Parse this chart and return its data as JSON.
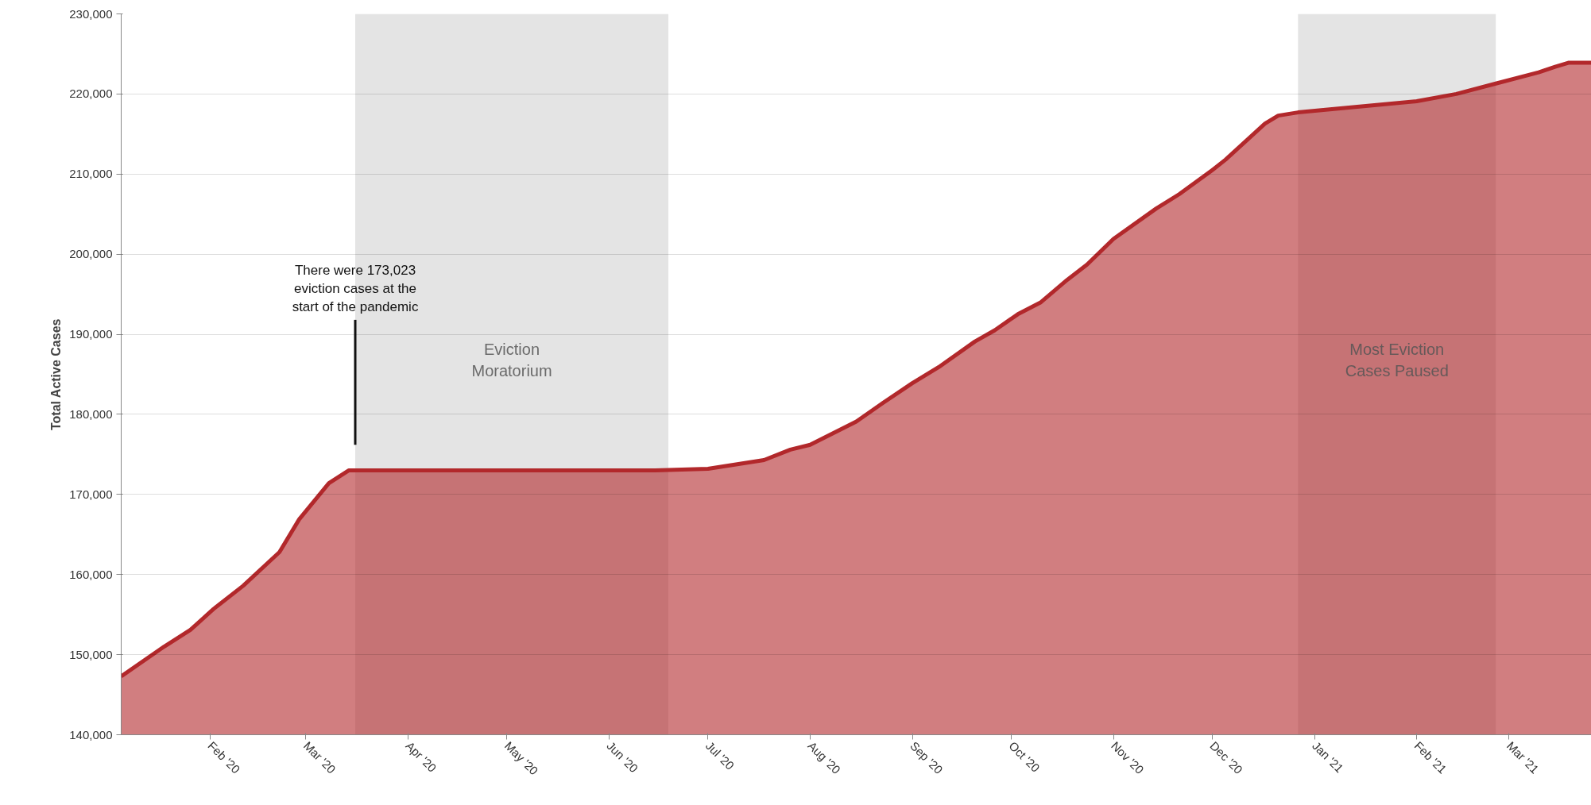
{
  "chart_data": {
    "type": "area",
    "ylabel": "Total Active Cases",
    "x": [
      "2020-01-05",
      "2020-01-18",
      "2020-01-26",
      "2020-02-02",
      "2020-02-11",
      "2020-02-22",
      "2020-02-28",
      "2020-03-08",
      "2020-03-14",
      "2020-03-16",
      "2020-04-15",
      "2020-05-15",
      "2020-06-15",
      "2020-07-01",
      "2020-07-18",
      "2020-07-26",
      "2020-08-01",
      "2020-08-15",
      "2020-08-23",
      "2020-09-01",
      "2020-09-09",
      "2020-09-20",
      "2020-09-26",
      "2020-10-03",
      "2020-10-10",
      "2020-10-18",
      "2020-10-24",
      "2020-11-01",
      "2020-11-14",
      "2020-11-21",
      "2020-12-01",
      "2020-12-05",
      "2020-12-17",
      "2020-12-21",
      "2020-12-27",
      "2021-01-14",
      "2021-02-01",
      "2021-02-13",
      "2021-02-25",
      "2021-03-10",
      "2021-03-15",
      "2021-03-19",
      "2021-03-26"
    ],
    "series": [
      {
        "color": "#b2282b",
        "values": [
          147300,
          151000,
          153100,
          155700,
          158600,
          162800,
          166900,
          171400,
          173000,
          173000,
          173000,
          173000,
          173000,
          173200,
          174300,
          175600,
          176200,
          179100,
          181400,
          183900,
          185900,
          189100,
          190500,
          192500,
          194000,
          196800,
          198700,
          201900,
          205700,
          207500,
          210500,
          211800,
          216300,
          217300,
          217700,
          218400,
          219100,
          220000,
          221300,
          222700,
          223400,
          223900,
          223900
        ]
      },
      {
        "type": "line",
        "color": "#111111",
        "x": [
          "2020-03-16",
          "2020-03-16"
        ],
        "values": [
          176200,
          191800
        ]
      }
    ],
    "xlim": [
      "2020-01-05",
      "2021-03-26"
    ],
    "xticks": [
      {
        "value": "2020-02-01",
        "label": "Feb '20"
      },
      {
        "value": "2020-03-01",
        "label": "Mar '20"
      },
      {
        "value": "2020-04-01",
        "label": "Apr '20"
      },
      {
        "value": "2020-05-01",
        "label": "May '20"
      },
      {
        "value": "2020-06-01",
        "label": "Jun '20"
      },
      {
        "value": "2020-07-01",
        "label": "Jul '20"
      },
      {
        "value": "2020-08-01",
        "label": "Aug '20"
      },
      {
        "value": "2020-09-01",
        "label": "Sep '20"
      },
      {
        "value": "2020-10-01",
        "label": "Oct '20"
      },
      {
        "value": "2020-11-01",
        "label": "Nov '20"
      },
      {
        "value": "2020-12-01",
        "label": "Dec '20"
      },
      {
        "value": "2021-01-01",
        "label": "Jan '21"
      },
      {
        "value": "2021-02-01",
        "label": "Feb '21"
      },
      {
        "value": "2021-03-01",
        "label": "Mar '21"
      }
    ],
    "ylim": [
      140000,
      230000
    ],
    "yticks": [
      {
        "value": 140000,
        "label": "140,000"
      },
      {
        "value": 150000,
        "label": "150,000"
      },
      {
        "value": 160000,
        "label": "160,000"
      },
      {
        "value": 170000,
        "label": "170,000"
      },
      {
        "value": 180000,
        "label": "180,000"
      },
      {
        "value": 190000,
        "label": "190,000"
      },
      {
        "value": 200000,
        "label": "200,000"
      },
      {
        "value": 210000,
        "label": "210,000"
      },
      {
        "value": 220000,
        "label": "220,000"
      },
      {
        "value": 230000,
        "label": "230,000"
      }
    ],
    "grid": "y",
    "bands": [
      {
        "axis": "x",
        "from": "2020-03-16",
        "to": "2020-06-19",
        "label": "Eviction\nMoratorium",
        "color": "#e4e4e4"
      },
      {
        "axis": "x",
        "from": "2020-12-27",
        "to": "2021-02-25",
        "label": "Most Eviction\nCases Paused",
        "color": "#e4e4e4"
      }
    ],
    "annotations": [
      {
        "text": "There were 173,023\neviction cases at the\nstart of the pandemic",
        "x": "2020-03-16",
        "y": 192500
      }
    ]
  }
}
